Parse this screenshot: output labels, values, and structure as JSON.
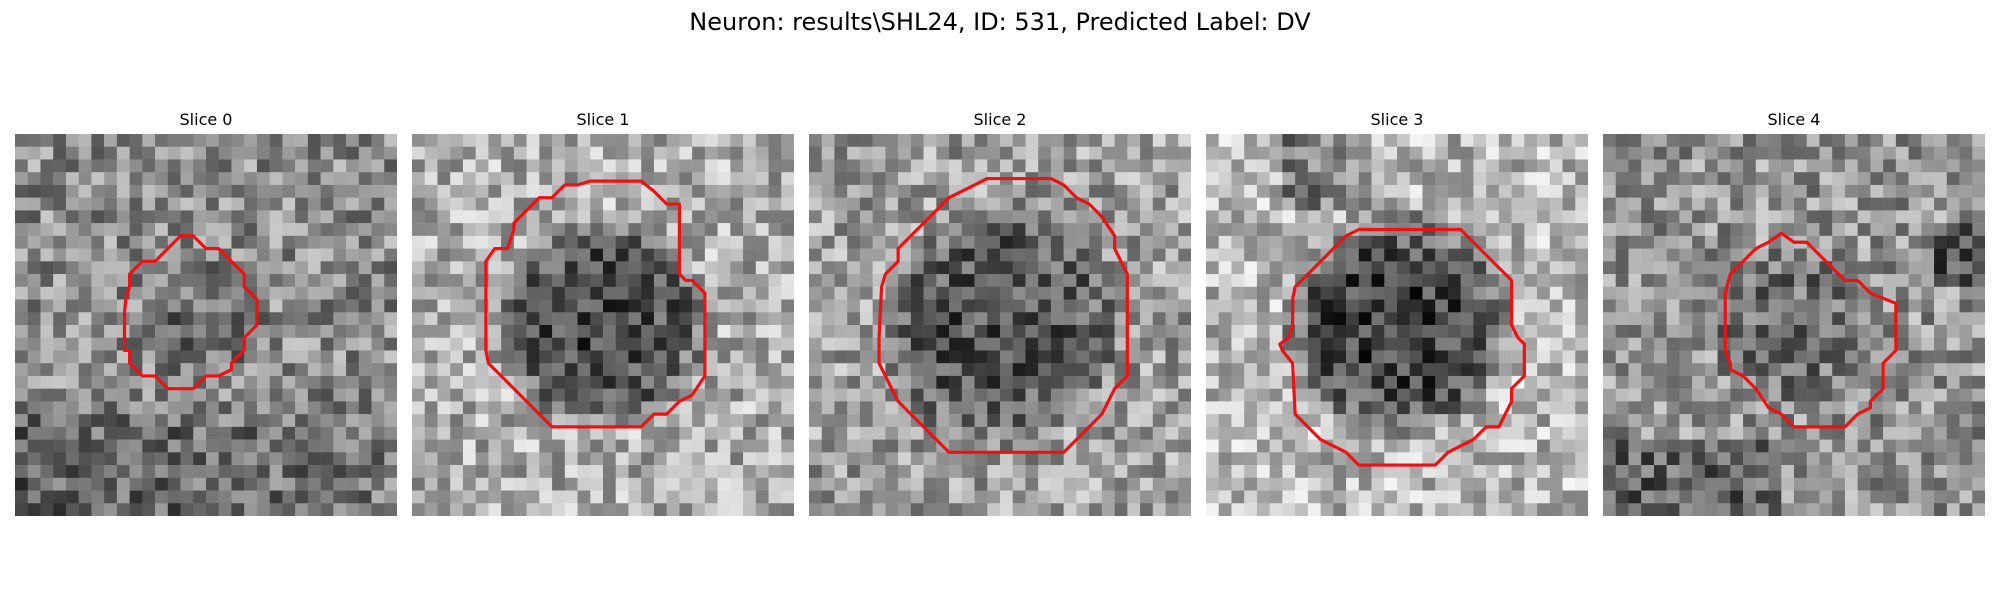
{
  "figure": {
    "title": "Neuron: results\\SHL24, ID: 531, Predicted Label: DV",
    "contour_color": "#ee1111"
  },
  "panels": [
    {
      "title": "Slice 0",
      "seed": 11,
      "base": 0.55,
      "bg_gradient": "lower-dark",
      "blob_radius": 0.35,
      "blob_strength": 0.12
    },
    {
      "title": "Slice 1",
      "seed": 23,
      "base": 0.68,
      "bg_gradient": "none",
      "blob_radius": 0.57,
      "blob_strength": 0.4
    },
    {
      "title": "Slice 2",
      "seed": 37,
      "base": 0.62,
      "bg_gradient": "none",
      "blob_radius": 0.66,
      "blob_strength": 0.3
    },
    {
      "title": "Slice 3",
      "seed": 41,
      "base": 0.72,
      "bg_gradient": "top-left-dark",
      "blob_radius": 0.62,
      "blob_strength": 0.48
    },
    {
      "title": "Slice 4",
      "seed": 53,
      "base": 0.58,
      "bg_gradient": "lower-left-dark",
      "blob_radius": 0.45,
      "blob_strength": 0.15
    }
  ]
}
